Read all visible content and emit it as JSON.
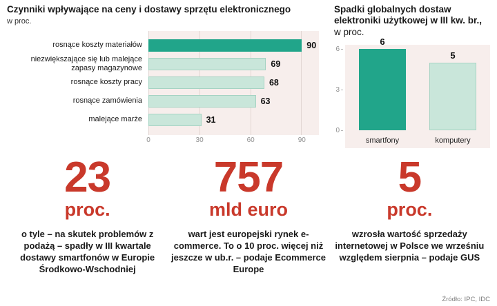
{
  "chart_data": [
    {
      "type": "bar",
      "orientation": "horizontal",
      "title": "Czynniki wpływające na ceny i dostawy sprzętu elektronicznego",
      "subtitle": "w proc.",
      "categories": [
        "rosnące koszty materiałów",
        "niezwiększające się lub malejące zapasy magazynowe",
        "rosnące koszty pracy",
        "rosnące zamówienia",
        "malejące marże"
      ],
      "values": [
        90,
        69,
        68,
        63,
        31
      ],
      "xticks": [
        0,
        30,
        60,
        90
      ],
      "xlim": [
        0,
        100
      ],
      "highlight_index": 0,
      "legend": "none",
      "grid": true
    },
    {
      "type": "bar",
      "orientation": "vertical",
      "title_bold": "Spadki globalnych dostaw elektroniki użytkowej w III kw. br.,",
      "title_normal": "w proc.",
      "categories": [
        "smartfony",
        "komputery"
      ],
      "values": [
        6,
        5
      ],
      "yticks": [
        0,
        3,
        6
      ],
      "ylim": [
        0,
        6
      ],
      "highlight_index": 0,
      "legend": "none",
      "grid": false
    }
  ],
  "stats": [
    {
      "value": "23",
      "unit": "proc.",
      "description": "o tyle – na skutek problemów z podażą – spadły w III kwartale dostawy smartfonów w Europie Środkowo-Wschodniej"
    },
    {
      "value": "757",
      "unit": "mld euro",
      "description": "wart jest europejski rynek e-commerce. To o 10 proc. więcej niż jeszcze w ub.r. – podaje Ecommerce Europe"
    },
    {
      "value": "5",
      "unit": "proc.",
      "description": "wzrosła wartość sprzedaży internetowej w Polsce we wrześniu względem sierpnia – podaje GUS"
    }
  ],
  "source": "Źródło: IPC, IDC",
  "colors": {
    "accent": "#21a58a",
    "accent_light": "#c9e6da",
    "accent_border": "#a5d3c3",
    "red": "#c9392b",
    "plot_bg": "#f7eeec",
    "grid": "#e2d6d3"
  }
}
